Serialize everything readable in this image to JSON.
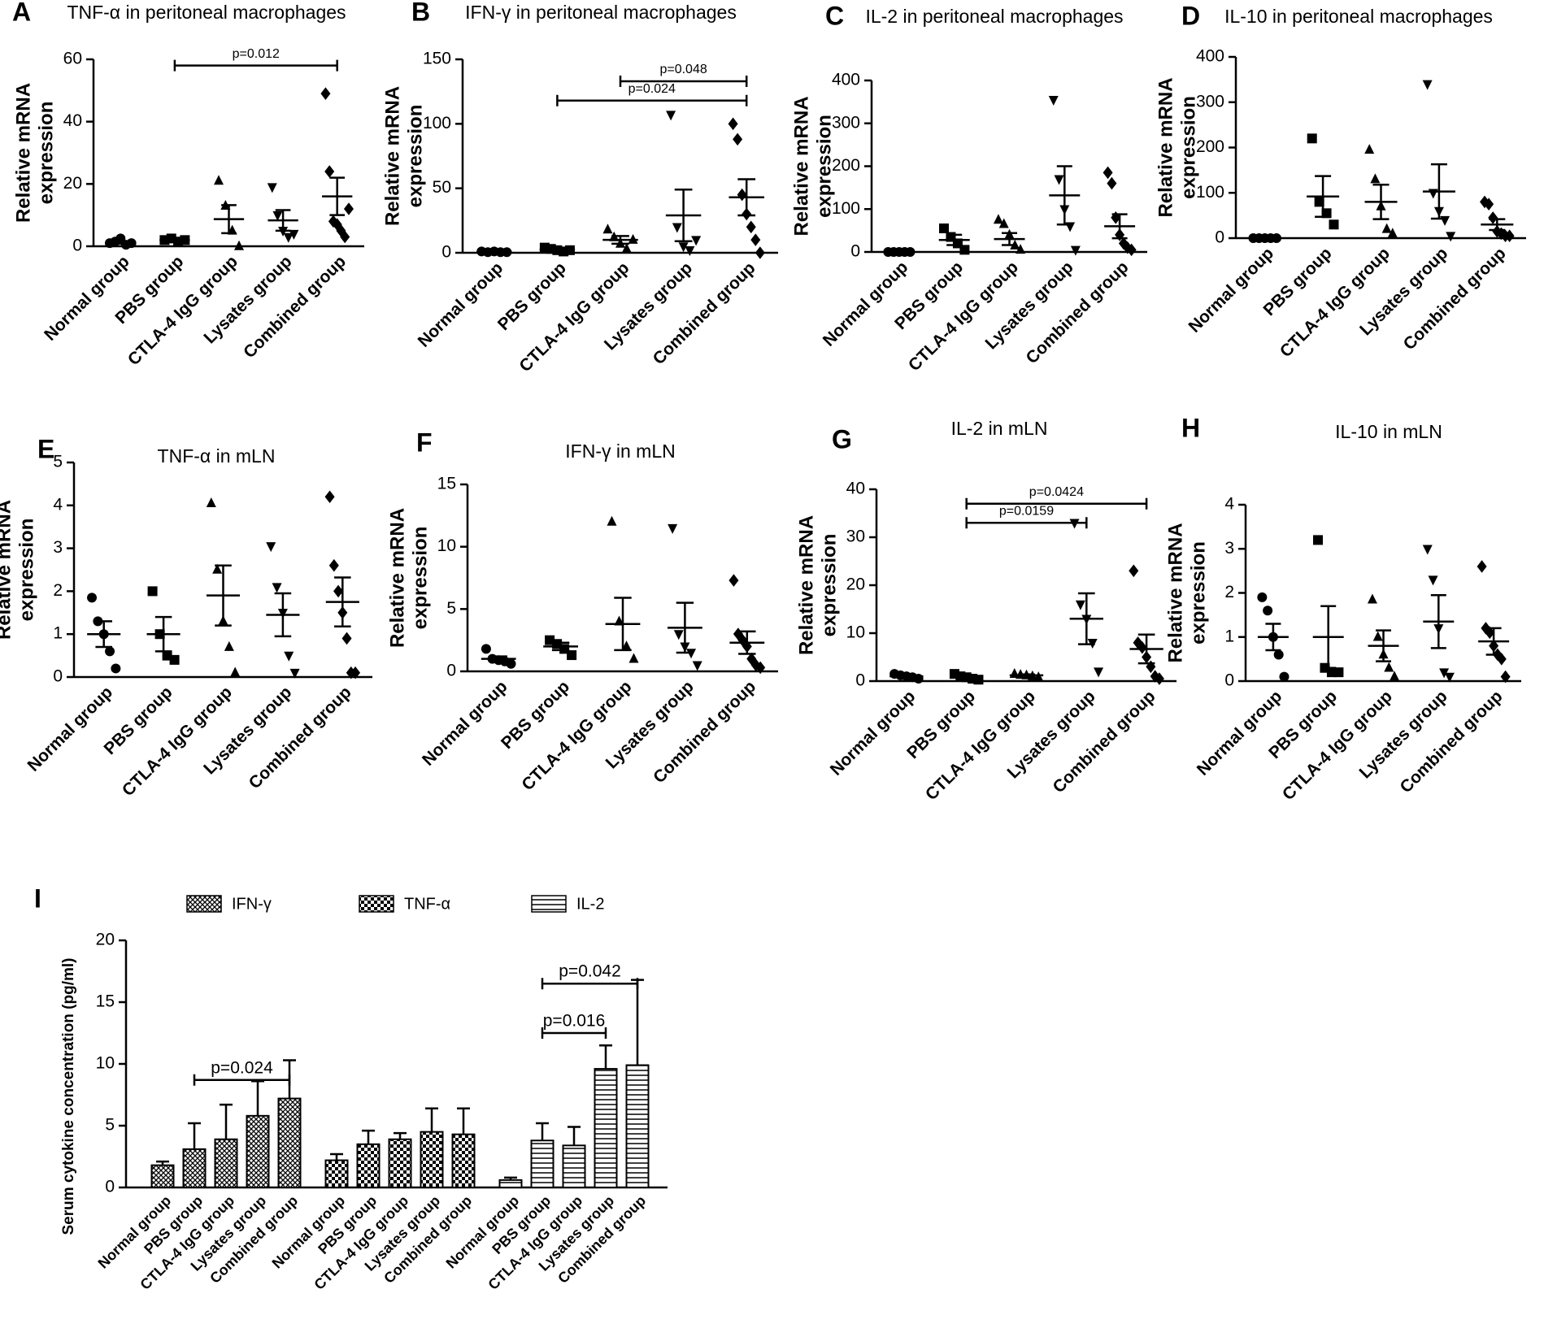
{
  "chart_data": [
    {
      "type": "dotplot",
      "letter": "A",
      "title": "TNF-α in peritoneal macrophages",
      "ylabel": [
        "Relative mRNA",
        "expression"
      ],
      "categories": [
        "Normal group",
        "PBS group",
        "CTLA-4 IgG group",
        "Lysates group",
        "Combined group"
      ],
      "markers": [
        "circle",
        "square",
        "triangle-up",
        "triangle-down",
        "diamond"
      ],
      "color": "#000000",
      "points": [
        [
          1,
          1.5,
          2.5,
          0.5,
          1
        ],
        [
          2,
          2.5,
          1.5,
          2
        ],
        [
          21,
          13,
          5,
          0
        ],
        [
          19,
          10,
          5,
          3,
          4
        ],
        [
          49,
          24,
          8,
          7,
          5,
          3,
          12
        ]
      ],
      "means": [
        1.2,
        2,
        8.7,
        8.3,
        16
      ],
      "sems": [
        0.4,
        0.3,
        4.5,
        3.3,
        6
      ],
      "ylim": [
        0,
        60
      ],
      "yticks": [
        0,
        20,
        40,
        60
      ],
      "comparisons": [
        {
          "from": 1,
          "to": 4,
          "y": 58,
          "label": "p=0.012"
        }
      ]
    },
    {
      "type": "dotplot",
      "letter": "B",
      "title": "IFN-γ in peritoneal macrophages",
      "ylabel": [
        "Relative mRNA",
        "expression"
      ],
      "categories": [
        "Normal group",
        "PBS group",
        "CTLA-4 IgG group",
        "Lysates group",
        "Combined group"
      ],
      "markers": [
        "circle",
        "square",
        "triangle-up",
        "triangle-down",
        "diamond"
      ],
      "color": "#000000",
      "points": [
        [
          1,
          0.5,
          1,
          0.5,
          0.5
        ],
        [
          4,
          3,
          2,
          1,
          2
        ],
        [
          18,
          12,
          7,
          3,
          10
        ],
        [
          107,
          20,
          5,
          2,
          10
        ],
        [
          100,
          88,
          45,
          30,
          20,
          10,
          0
        ]
      ],
      "means": [
        0.7,
        2.5,
        10,
        29,
        43
      ],
      "sems": [
        0.2,
        0.5,
        3,
        20,
        14
      ],
      "ylim": [
        0,
        150
      ],
      "yticks": [
        0,
        50,
        100,
        150
      ],
      "comparisons": [
        {
          "from": 1,
          "to": 4,
          "y": 118,
          "label": "p=0.024"
        },
        {
          "from": 2,
          "to": 4,
          "y": 133,
          "label": "p=0.048"
        }
      ]
    },
    {
      "type": "dotplot",
      "letter": "C",
      "title": "IL-2 in peritoneal macrophages",
      "ylabel": [
        "Relative mRNA",
        "expression"
      ],
      "categories": [
        "Normal group",
        "PBS group",
        "CTLA-4 IgG group",
        "Lysates group",
        "Combined group"
      ],
      "markers": [
        "circle",
        "square",
        "triangle-up",
        "triangle-down",
        "diamond"
      ],
      "color": "#000000",
      "points": [
        [
          0,
          0,
          0,
          0,
          0
        ],
        [
          55,
          35,
          20,
          5
        ],
        [
          75,
          65,
          40,
          15,
          5
        ],
        [
          355,
          170,
          100,
          60,
          5
        ],
        [
          185,
          160,
          80,
          40,
          20,
          10,
          5
        ]
      ],
      "means": [
        0,
        28,
        30,
        132,
        60
      ],
      "sems": [
        0,
        12,
        14,
        68,
        28
      ],
      "ylim": [
        0,
        400
      ],
      "yticks": [
        0,
        100,
        200,
        300,
        400
      ],
      "comparisons": []
    },
    {
      "type": "dotplot",
      "letter": "D",
      "title": "IL-10 in peritoneal macrophages",
      "ylabel": [
        "Relative mRNA",
        "expression"
      ],
      "categories": [
        "Normal group",
        "PBS group",
        "CTLA-4 IgG group",
        "Lysates group",
        "Combined group"
      ],
      "markers": [
        "circle",
        "square",
        "triangle-up",
        "triangle-down",
        "diamond"
      ],
      "color": "#000000",
      "points": [
        [
          0,
          0,
          0,
          0,
          0
        ],
        [
          220,
          80,
          55,
          30
        ],
        [
          195,
          130,
          70,
          20,
          10
        ],
        [
          340,
          100,
          60,
          40,
          5
        ],
        [
          80,
          75,
          45,
          15,
          10,
          5,
          5
        ]
      ],
      "means": [
        0,
        92,
        80,
        103,
        30
      ],
      "sems": [
        0,
        45,
        38,
        60,
        12
      ],
      "ylim": [
        0,
        400
      ],
      "yticks": [
        0,
        100,
        200,
        300,
        400
      ],
      "comparisons": []
    },
    {
      "type": "dotplot",
      "letter": "E",
      "title": "TNF-α in mLN",
      "ylabel": [
        "Relative mRNA",
        "expression"
      ],
      "categories": [
        "Normal group",
        "PBS group",
        "CTLA-4 IgG group",
        "Lysates group",
        "Combined group"
      ],
      "markers": [
        "circle",
        "square",
        "triangle-up",
        "triangle-down",
        "diamond"
      ],
      "color": "#000000",
      "points": [
        [
          1.85,
          1.3,
          1,
          0.6,
          0.2
        ],
        [
          2,
          1,
          0.5,
          0.4
        ],
        [
          4.05,
          2.5,
          1.3,
          0.7,
          0.1
        ],
        [
          3.05,
          2.1,
          1.5,
          0.5,
          0.1
        ],
        [
          4.2,
          2.6,
          2,
          1.5,
          0.9,
          0.1,
          0.1
        ]
      ],
      "means": [
        1,
        1,
        1.9,
        1.45,
        1.75
      ],
      "sems": [
        0.3,
        0.4,
        0.7,
        0.5,
        0.57
      ],
      "ylim": [
        0,
        5
      ],
      "yticks": [
        0,
        1,
        2,
        3,
        4,
        5
      ],
      "comparisons": []
    },
    {
      "type": "dotplot",
      "letter": "F",
      "title": "IFN-γ in mLN",
      "ylabel": [
        "Relative mRNA",
        "expression"
      ],
      "categories": [
        "Normal group",
        "PBS group",
        "CTLA-4 IgG group",
        "Lysates group",
        "Combined group"
      ],
      "markers": [
        "circle",
        "square",
        "triangle-up",
        "triangle-down",
        "diamond"
      ],
      "color": "#000000",
      "points": [
        [
          1.8,
          1,
          0.9,
          0.8,
          0.6
        ],
        [
          2.5,
          2.2,
          1.8,
          1.3
        ],
        [
          12,
          4,
          2,
          1
        ],
        [
          11.5,
          3,
          2,
          1.5,
          0.5
        ],
        [
          7.3,
          3,
          2.5,
          2,
          1,
          0.5,
          0.3
        ]
      ],
      "means": [
        1,
        2,
        3.8,
        3.5,
        2.3
      ],
      "sems": [
        0.2,
        0.3,
        2.1,
        2,
        0.9
      ],
      "ylim": [
        0,
        15
      ],
      "yticks": [
        0,
        5,
        10,
        15
      ],
      "comparisons": []
    },
    {
      "type": "dotplot",
      "letter": "G",
      "title": "IL-2 in mLN",
      "ylabel": [
        "Relative mRNA",
        "expression"
      ],
      "categories": [
        "Normal group",
        "PBS group",
        "CTLA-4 IgG group",
        "Lysates group",
        "Combined group"
      ],
      "markers": [
        "circle",
        "square",
        "triangle-up",
        "triangle-down",
        "diamond"
      ],
      "color": "#000000",
      "points": [
        [
          1.5,
          1.2,
          1,
          0.8,
          0.5
        ],
        [
          1.5,
          1,
          0.8,
          0.5,
          0.3
        ],
        [
          1.5,
          1.3,
          1.2,
          1,
          0.8
        ],
        [
          33,
          16,
          13,
          8,
          2
        ],
        [
          23,
          8,
          7,
          5,
          3,
          1,
          0.5
        ]
      ],
      "means": [
        1,
        0.8,
        1.2,
        13,
        6.7
      ],
      "sems": [
        0.2,
        0.3,
        0.2,
        5.3,
        3
      ],
      "ylim": [
        0,
        40
      ],
      "yticks": [
        0,
        10,
        20,
        30,
        40
      ],
      "comparisons": [
        {
          "from": 1,
          "to": 3,
          "y": 33,
          "label": "p=0.0159"
        },
        {
          "from": 1,
          "to": 4,
          "y": 37,
          "label": "p=0.0424"
        }
      ]
    },
    {
      "type": "dotplot",
      "letter": "H",
      "title": "IL-10 in mLN",
      "ylabel": [
        "Relative mRNA",
        "expression"
      ],
      "categories": [
        "Normal group",
        "PBS group",
        "CTLA-4 IgG group",
        "Lysates group",
        "Combined group"
      ],
      "markers": [
        "circle",
        "square",
        "triangle-up",
        "triangle-down",
        "diamond"
      ],
      "color": "#000000",
      "points": [
        [
          1.9,
          1.6,
          1,
          0.6,
          0.1
        ],
        [
          3.2,
          0.3,
          0.2,
          0.2
        ],
        [
          1.85,
          1,
          0.6,
          0.3,
          0.1
        ],
        [
          3,
          2.3,
          1.2,
          0.2,
          0.1
        ],
        [
          2.6,
          1.2,
          1.1,
          0.8,
          0.6,
          0.5,
          0.1
        ]
      ],
      "means": [
        1,
        1,
        0.8,
        1.35,
        0.9
      ],
      "sems": [
        0.3,
        0.7,
        0.35,
        0.6,
        0.3
      ],
      "ylim": [
        0,
        4
      ],
      "yticks": [
        0,
        1,
        2,
        3,
        4
      ],
      "comparisons": []
    },
    {
      "type": "bar",
      "letter": "I",
      "ylabel": "Serum cytokine concentration (pg/ml)",
      "categories": [
        "Normal group",
        "PBS group",
        "CTLA-4 IgG group",
        "Lysates group",
        "Combined group"
      ],
      "series": [
        {
          "name": "IFN-γ",
          "pattern": "crosshatch",
          "color": "#000000",
          "values": [
            1.8,
            3.1,
            3.9,
            5.8,
            7.2
          ],
          "errors": [
            0.3,
            2.1,
            2.8,
            2.8,
            3.1
          ]
        },
        {
          "name": "TNF-α",
          "pattern": "checker",
          "color": "#000000",
          "values": [
            2.2,
            3.5,
            3.9,
            4.5,
            4.3
          ],
          "errors": [
            0.5,
            1.1,
            0.5,
            1.9,
            2.1
          ]
        },
        {
          "name": "IL-2",
          "pattern": "hlines",
          "color": "#000000",
          "values": [
            0.6,
            3.8,
            3.4,
            9.6,
            9.9
          ],
          "errors": [
            0.2,
            1.4,
            1.5,
            1.9,
            6.9
          ]
        }
      ],
      "ylim": [
        0,
        20
      ],
      "yticks": [
        0,
        5,
        10,
        15,
        20
      ],
      "comparisons": [
        {
          "series": 0,
          "from": 1,
          "to": 4,
          "y": 8.7,
          "label": "p=0.024"
        },
        {
          "series": 2,
          "from": 1,
          "to": 3,
          "y": 12.5,
          "label": "p=0.016"
        },
        {
          "series": 2,
          "from": 1,
          "to": 4,
          "y": 16.5,
          "label": "p=0.042"
        }
      ]
    }
  ]
}
